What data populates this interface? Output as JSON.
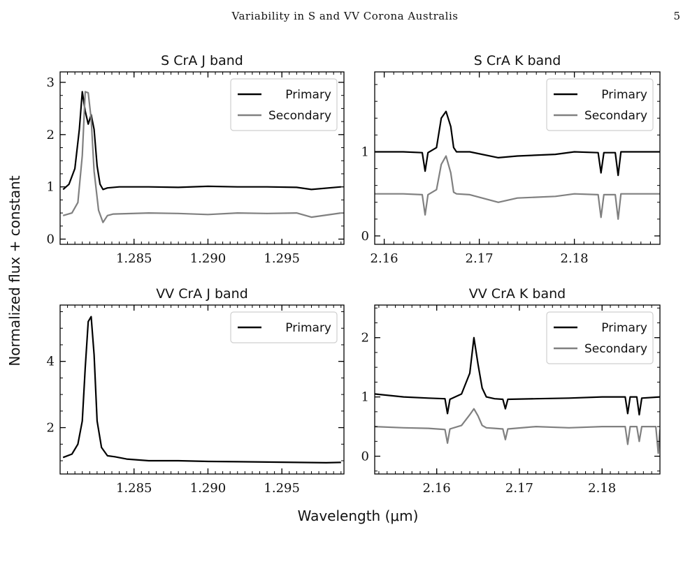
{
  "page": {
    "running_header": "Variability in S and VV Corona Australis",
    "page_number": "5"
  },
  "figure": {
    "ylabel": "Normalized flux + constant",
    "xlabel": "Wavelength (μm)"
  },
  "colors": {
    "primary": "#000000",
    "secondary": "#808080"
  },
  "chart_data": [
    {
      "type": "line",
      "title": "S CrA J band",
      "xlim": [
        1.28,
        1.2992
      ],
      "ylim": [
        -0.1,
        3.2
      ],
      "xticks": [
        1.285,
        1.29,
        1.295
      ],
      "xtick_labels": [
        "1.285",
        "1.290",
        "1.295"
      ],
      "yticks": [
        0,
        1,
        2,
        3
      ],
      "ytick_labels": [
        "0",
        "1",
        "2",
        "3"
      ],
      "legend": "top-right",
      "series": [
        {
          "name": "Primary",
          "color": "#000000",
          "x": [
            1.2802,
            1.2806,
            1.281,
            1.2813,
            1.2815,
            1.2817,
            1.2819,
            1.2821,
            1.2823,
            1.2825,
            1.2827,
            1.2829,
            1.2832,
            1.284,
            1.286,
            1.288,
            1.29,
            1.292,
            1.294,
            1.296,
            1.297,
            1.299
          ],
          "y": [
            0.95,
            1.05,
            1.35,
            2.1,
            2.82,
            2.45,
            2.2,
            2.38,
            2.1,
            1.4,
            1.05,
            0.95,
            0.98,
            1.0,
            1.0,
            0.99,
            1.01,
            1.0,
            1.0,
            0.99,
            0.95,
            1.0
          ]
        },
        {
          "name": "Secondary",
          "color": "#808080",
          "x": [
            1.2802,
            1.2808,
            1.2812,
            1.2815,
            1.2817,
            1.2819,
            1.2821,
            1.2823,
            1.2826,
            1.2829,
            1.2832,
            1.2836,
            1.286,
            1.288,
            1.29,
            1.292,
            1.294,
            1.296,
            1.297,
            1.299
          ],
          "y": [
            0.45,
            0.5,
            0.7,
            1.6,
            2.82,
            2.8,
            2.3,
            1.3,
            0.55,
            0.32,
            0.45,
            0.48,
            0.5,
            0.49,
            0.47,
            0.5,
            0.49,
            0.5,
            0.42,
            0.5
          ]
        }
      ]
    },
    {
      "type": "line",
      "title": "S CrA K band",
      "xlim": [
        2.159,
        2.189
      ],
      "ylim": [
        -0.1,
        1.95
      ],
      "xticks": [
        2.16,
        2.17,
        2.18
      ],
      "xtick_labels": [
        "2.16",
        "2.17",
        "2.18"
      ],
      "yticks": [
        0,
        1
      ],
      "ytick_labels": [
        "0",
        "1"
      ],
      "legend": "top-right",
      "series": [
        {
          "name": "Primary",
          "color": "#000000",
          "x": [
            2.159,
            2.162,
            2.164,
            2.1643,
            2.1646,
            2.1655,
            2.166,
            2.1665,
            2.167,
            2.1673,
            2.1676,
            2.169,
            2.172,
            2.174,
            2.178,
            2.18,
            2.1825,
            2.1828,
            2.1831,
            2.1843,
            2.1846,
            2.1849,
            2.187,
            2.189
          ],
          "y": [
            1.0,
            1.0,
            0.99,
            0.77,
            0.99,
            1.05,
            1.4,
            1.48,
            1.3,
            1.05,
            1.0,
            1.0,
            0.93,
            0.95,
            0.97,
            1.0,
            0.99,
            0.75,
            0.99,
            0.99,
            0.72,
            1.0,
            1.0,
            1.0
          ]
        },
        {
          "name": "Secondary",
          "color": "#808080",
          "x": [
            2.159,
            2.162,
            2.164,
            2.1643,
            2.1646,
            2.1655,
            2.166,
            2.1665,
            2.167,
            2.1673,
            2.1676,
            2.169,
            2.172,
            2.174,
            2.178,
            2.18,
            2.1825,
            2.1828,
            2.1831,
            2.1843,
            2.1846,
            2.1849,
            2.187,
            2.189
          ],
          "y": [
            0.5,
            0.5,
            0.49,
            0.25,
            0.49,
            0.55,
            0.85,
            0.95,
            0.75,
            0.52,
            0.5,
            0.49,
            0.4,
            0.45,
            0.47,
            0.5,
            0.49,
            0.22,
            0.49,
            0.49,
            0.2,
            0.5,
            0.5,
            0.5
          ]
        }
      ]
    },
    {
      "type": "line",
      "title": "VV CrA J band",
      "xlim": [
        1.28,
        1.2992
      ],
      "ylim": [
        0.6,
        5.7
      ],
      "xticks": [
        1.285,
        1.29,
        1.295
      ],
      "xtick_labels": [
        "1.285",
        "1.290",
        "1.295"
      ],
      "yticks": [
        2,
        4
      ],
      "ytick_labels": [
        "2",
        "4"
      ],
      "legend": "top-right",
      "series": [
        {
          "name": "Primary",
          "color": "#000000",
          "x": [
            1.2802,
            1.2808,
            1.2812,
            1.2815,
            1.2817,
            1.2819,
            1.2821,
            1.2823,
            1.2825,
            1.2828,
            1.2832,
            1.2837,
            1.2845,
            1.286,
            1.288,
            1.29,
            1.292,
            1.294,
            1.296,
            1.298,
            1.299
          ],
          "y": [
            1.1,
            1.2,
            1.5,
            2.2,
            3.8,
            5.2,
            5.35,
            4.2,
            2.2,
            1.4,
            1.15,
            1.12,
            1.05,
            1.0,
            1.0,
            0.98,
            0.97,
            0.96,
            0.95,
            0.94,
            0.95
          ]
        }
      ]
    },
    {
      "type": "line",
      "title": "VV CrA K band",
      "xlim": [
        2.1525,
        2.187
      ],
      "ylim": [
        -0.3,
        2.55
      ],
      "xticks": [
        2.16,
        2.17,
        2.18
      ],
      "xtick_labels": [
        "2.16",
        "2.17",
        "2.18"
      ],
      "yticks": [
        0,
        1,
        2
      ],
      "ytick_labels": [
        "0",
        "1",
        "2"
      ],
      "legend": "top-right",
      "series": [
        {
          "name": "Primary",
          "color": "#000000",
          "x": [
            2.1525,
            2.156,
            2.159,
            2.161,
            2.1613,
            2.1616,
            2.163,
            2.164,
            2.1645,
            2.165,
            2.1655,
            2.166,
            2.167,
            2.168,
            2.1683,
            2.1686,
            2.172,
            2.176,
            2.18,
            2.1828,
            2.1831,
            2.1834,
            2.1842,
            2.1845,
            2.1848,
            2.187
          ],
          "y": [
            1.05,
            1.0,
            0.98,
            0.97,
            0.72,
            0.96,
            1.05,
            1.4,
            2.0,
            1.55,
            1.15,
            1.0,
            0.97,
            0.96,
            0.8,
            0.96,
            0.97,
            0.98,
            1.0,
            1.0,
            0.72,
            1.0,
            1.0,
            0.7,
            0.98,
            1.0
          ]
        },
        {
          "name": "Secondary",
          "color": "#808080",
          "x": [
            2.1525,
            2.156,
            2.159,
            2.161,
            2.1613,
            2.1616,
            2.163,
            2.164,
            2.1645,
            2.165,
            2.1655,
            2.166,
            2.167,
            2.168,
            2.1683,
            2.1686,
            2.172,
            2.176,
            2.18,
            2.1828,
            2.1831,
            2.1834,
            2.1842,
            2.1845,
            2.1848,
            2.1865,
            2.1868,
            2.187
          ],
          "y": [
            0.5,
            0.48,
            0.47,
            0.45,
            0.22,
            0.46,
            0.52,
            0.7,
            0.8,
            0.68,
            0.52,
            0.48,
            0.47,
            0.46,
            0.28,
            0.46,
            0.5,
            0.48,
            0.5,
            0.5,
            0.2,
            0.5,
            0.5,
            0.25,
            0.5,
            0.5,
            0.05,
            0.45
          ]
        }
      ]
    }
  ]
}
